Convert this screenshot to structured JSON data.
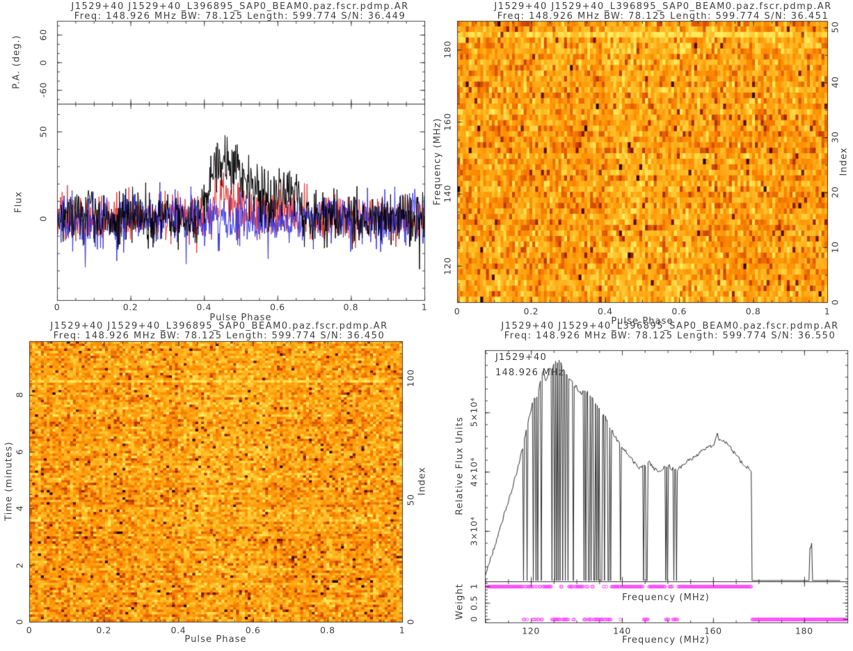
{
  "page": {
    "background": "#ffffff",
    "text_color": "#3e3e3e",
    "axis_color": "#2e2e2e"
  },
  "rng_seed": 1529,
  "heatmap_palette": {
    "positions": [
      0,
      0.25,
      0.45,
      0.62,
      0.78,
      0.9,
      1.0
    ],
    "colors": [
      "#200000",
      "#8c1a00",
      "#d84f00",
      "#ff8c00",
      "#ffb41e",
      "#ffd23c",
      "#ffec5e"
    ]
  },
  "chart_data": [
    {
      "id": "pulse-profile",
      "type": "line",
      "title": "J1529+40 J1529+40_L396895_SAP0_BEAM0.paz.fscr.pdmp.AR",
      "subtitle": "Freq: 148.926 MHz BW: 78.125 Length: 599.774 S/N: 36.449",
      "xlabel": "Pulse Phase",
      "xlim": [
        0,
        1
      ],
      "xticks": [
        0,
        0.2,
        0.4,
        0.6,
        0.8,
        1
      ],
      "xtick_labels": [
        "0",
        "0.2",
        "0.4",
        "0.6",
        "0.8",
        "1"
      ],
      "x_minor_step": 0.05,
      "pa_panel": {
        "ylabel": "P.A. (deg.)",
        "ylim": [
          -90,
          90
        ],
        "yticks": [
          -60,
          0,
          60
        ],
        "ytick_labels": [
          "-60",
          "0",
          "60"
        ],
        "y_minor_step": 20,
        "points": []
      },
      "flux_panel": {
        "ylabel": "Flux",
        "ylim": [
          -47,
          66
        ],
        "yticks": [
          0,
          50
        ],
        "ytick_labels": [
          "0",
          "50"
        ],
        "y_minor_step": 10,
        "n_bins": 700,
        "series": [
          {
            "name": "total-intensity",
            "color": "#000000",
            "baseline_sigma": 7.5,
            "pulse": {
              "start": 0.38,
              "end": 0.67,
              "mean_amp": 26,
              "extra_sigma": 5.5,
              "peak_approx": 55
            }
          },
          {
            "name": "linear-polarization",
            "color": "#e23232",
            "baseline_sigma": 7.0,
            "pulse": {
              "start": 0.4,
              "end": 0.66,
              "mean_amp": 8.5,
              "extra_sigma": 2.0,
              "peak_approx": 30
            }
          },
          {
            "name": "circular-polarization",
            "color": "#3333dd",
            "baseline_sigma": 7.3,
            "pulse": null
          }
        ]
      }
    },
    {
      "id": "phase-frequency",
      "type": "heatmap",
      "title": "J1529+40 J1529+40_L396895_SAP0_BEAM0.paz.fscr.pdmp.AR",
      "subtitle": "Freq: 148.926 MHz BW: 78.125 Length: 599.774 S/N: 36.451",
      "xlabel": "Pulse Phase",
      "xlim": [
        0,
        1
      ],
      "xticks": [
        0,
        0.2,
        0.4,
        0.6,
        0.8,
        1
      ],
      "xtick_labels": [
        "0",
        "0.2",
        "0.4",
        "0.6",
        "0.8",
        "1"
      ],
      "x_minor_step": 0.05,
      "ylabel": "Frequency (MHz)",
      "ylim": [
        109.9,
        188.0
      ],
      "yticks": [
        120,
        140,
        160,
        180
      ],
      "ytick_labels": [
        "120",
        "140",
        "160",
        "180"
      ],
      "y_minor_step": 5,
      "y2label": "Index",
      "y2lim": [
        0,
        51.2
      ],
      "y2ticks": [
        0,
        10,
        20,
        30,
        40,
        50
      ],
      "y2tick_labels": [
        "0",
        "10",
        "20",
        "30",
        "40",
        "50"
      ],
      "y2_minor_step": 5,
      "grid": {
        "cols": 128,
        "rows": 51
      },
      "value_base": 0.7,
      "value_sigma": 0.13,
      "bright_rows": [
        2
      ],
      "bright_row_boost": 0.2,
      "pulse_band": [
        0.4,
        0.65
      ],
      "pulse_boost": 0.05
    },
    {
      "id": "phase-time",
      "type": "heatmap",
      "title": "J1529+40 J1529+40_L396895_SAP0_BEAM0.paz.fscr.pdmp.AR",
      "subtitle": "Freq: 148.926 MHz BW: 78.125 Length: 599.774 S/N: 36.450",
      "xlabel": "Pulse Phase",
      "xlim": [
        0,
        1
      ],
      "xticks": [
        0,
        0.2,
        0.4,
        0.6,
        0.8,
        1
      ],
      "xtick_labels": [
        "0",
        "0.2",
        "0.4",
        "0.6",
        "0.8",
        "1"
      ],
      "x_minor_step": 0.05,
      "ylabel": "Time (minutes)",
      "ylim": [
        0,
        9.9
      ],
      "yticks": [
        0,
        2,
        4,
        6,
        8
      ],
      "ytick_labels": [
        "0",
        "2",
        "4",
        "6",
        "8"
      ],
      "y_minor_step": 0.5,
      "y2label": "Index",
      "y2lim": [
        0,
        115
      ],
      "y2ticks": [
        0,
        50,
        100
      ],
      "y2tick_labels": [
        "0",
        "50",
        "100"
      ],
      "y2_minor_step": 10,
      "grid": {
        "cols": 128,
        "rows": 115
      },
      "value_base": 0.7,
      "value_sigma": 0.13,
      "bright_rows": [
        16
      ],
      "bright_row_boost": 0.18,
      "pulse_band": [
        0.4,
        0.65
      ],
      "pulse_boost": 0.035
    },
    {
      "id": "spectrum",
      "type": "line",
      "title": "J1529+40 J1529+40_L396895_SAP0_BEAM0.paz.fscr.pdmp.AR",
      "subtitle": "Freq: 148.926 MHz BW: 78.125 Length: 599.774 S/N: 36.550",
      "inset_line1": "J1529+40",
      "inset_line2": "148.926 MHz",
      "xlabel": "Frequency (MHz)",
      "xlabel_mid": "Frequency (MHz)",
      "xlim": [
        109.9,
        189.5
      ],
      "xticks": [
        120,
        140,
        160,
        180
      ],
      "xtick_labels": [
        "120",
        "140",
        "160",
        "180"
      ],
      "x_minor_step": 5,
      "ylabel": "Relative Flux Units",
      "ylim_e4": [
        2.15,
        6.05
      ],
      "yticks_e4": [
        3,
        4,
        5
      ],
      "ytick_labels": [
        "3×10⁴",
        "4×10⁴",
        "5×10⁴"
      ],
      "y_minor_step_e4": 0.2,
      "line_color": "#2e2e2e",
      "channel_width_mhz": 0.1953,
      "band_end_mhz": 168.35,
      "envelope_mhz_e4": [
        [
          109.9,
          2.28
        ],
        [
          111,
          2.52
        ],
        [
          112,
          2.76
        ],
        [
          113,
          3.0
        ],
        [
          114,
          3.28
        ],
        [
          115,
          3.52
        ],
        [
          116,
          3.78
        ],
        [
          117,
          4.05
        ],
        [
          118,
          4.38
        ],
        [
          119,
          4.72
        ],
        [
          120,
          5.08
        ],
        [
          120.7,
          5.25
        ],
        [
          121.5,
          5.32
        ],
        [
          122,
          5.55
        ],
        [
          122.7,
          5.7
        ],
        [
          123.3,
          5.52
        ],
        [
          124,
          5.72
        ],
        [
          125,
          5.8
        ],
        [
          125.7,
          5.88
        ],
        [
          126.5,
          5.85
        ],
        [
          127.3,
          5.72
        ],
        [
          128,
          5.6
        ],
        [
          129,
          5.5
        ],
        [
          130,
          5.42
        ],
        [
          131,
          5.32
        ],
        [
          132,
          5.38
        ],
        [
          133,
          5.28
        ],
        [
          134,
          5.16
        ],
        [
          135,
          5.05
        ],
        [
          136,
          4.95
        ],
        [
          137,
          4.82
        ],
        [
          138,
          4.65
        ],
        [
          139,
          4.52
        ],
        [
          140,
          4.42
        ],
        [
          141,
          4.32
        ],
        [
          142,
          4.22
        ],
        [
          143,
          4.12
        ],
        [
          144,
          4.06
        ],
        [
          145,
          4.12
        ],
        [
          146,
          4.16
        ],
        [
          147,
          4.05
        ],
        [
          148,
          4.0
        ],
        [
          149,
          4.06
        ],
        [
          150,
          4.12
        ],
        [
          151,
          4.05
        ],
        [
          152,
          4.02
        ],
        [
          153,
          4.1
        ],
        [
          154,
          4.16
        ],
        [
          155,
          4.22
        ],
        [
          156,
          4.28
        ],
        [
          157,
          4.32
        ],
        [
          158,
          4.38
        ],
        [
          159,
          4.42
        ],
        [
          160,
          4.46
        ],
        [
          160.8,
          4.65
        ],
        [
          161.5,
          4.52
        ],
        [
          162,
          4.55
        ],
        [
          163,
          4.48
        ],
        [
          164,
          4.38
        ],
        [
          165,
          4.28
        ],
        [
          166,
          4.18
        ],
        [
          167,
          4.12
        ],
        [
          168.3,
          4.0
        ]
      ],
      "notch_channels_mhz": [
        118.3,
        119.0,
        120.45,
        121.0,
        121.5,
        122.3,
        124.6,
        125.05,
        125.45,
        125.85,
        126.3,
        126.9,
        127.45,
        128.0,
        129.3,
        131.6,
        131.9,
        132.5,
        132.8,
        133.1,
        133.7,
        134.0,
        134.35,
        134.7,
        135.0,
        135.3,
        135.55,
        136.1,
        136.8,
        137.0,
        137.4,
        139.55,
        144.7,
        145.2,
        145.45,
        149.6,
        149.9,
        151.3,
        151.9
      ],
      "spike_channels_mhz_e4": [
        [
          181.3,
          2.72
        ],
        [
          181.6,
          2.8
        ]
      ],
      "weight_panel": {
        "ylabel": "Weight",
        "ylim": [
          -0.1,
          1.15
        ],
        "yticks": [
          0,
          0.5,
          1
        ],
        "ytick_labels": [
          "0",
          "0.5",
          "1"
        ],
        "y_minor_step": 0.1,
        "marker_color": "#ff3cff",
        "weight_one_runs": [
          [
            109.9,
            168.35
          ],
          [
            181.15,
            182.05
          ]
        ],
        "weight_zero_runs": [
          [
            118.2,
            118.55
          ],
          [
            118.9,
            119.2
          ],
          [
            120.3,
            120.65
          ],
          [
            120.9,
            121.15
          ],
          [
            121.4,
            121.65
          ],
          [
            122.15,
            122.5
          ],
          [
            124.5,
            126.5
          ],
          [
            126.8,
            128.2
          ],
          [
            129.2,
            129.5
          ],
          [
            131.4,
            132.1
          ],
          [
            132.4,
            133.3
          ],
          [
            133.6,
            135.7
          ],
          [
            135.95,
            136.4
          ],
          [
            136.6,
            137.5
          ],
          [
            139.45,
            139.75
          ],
          [
            144.55,
            145.65
          ],
          [
            149.5,
            150.15
          ],
          [
            151.1,
            152.15
          ],
          [
            168.4,
            189.4
          ]
        ]
      }
    }
  ]
}
